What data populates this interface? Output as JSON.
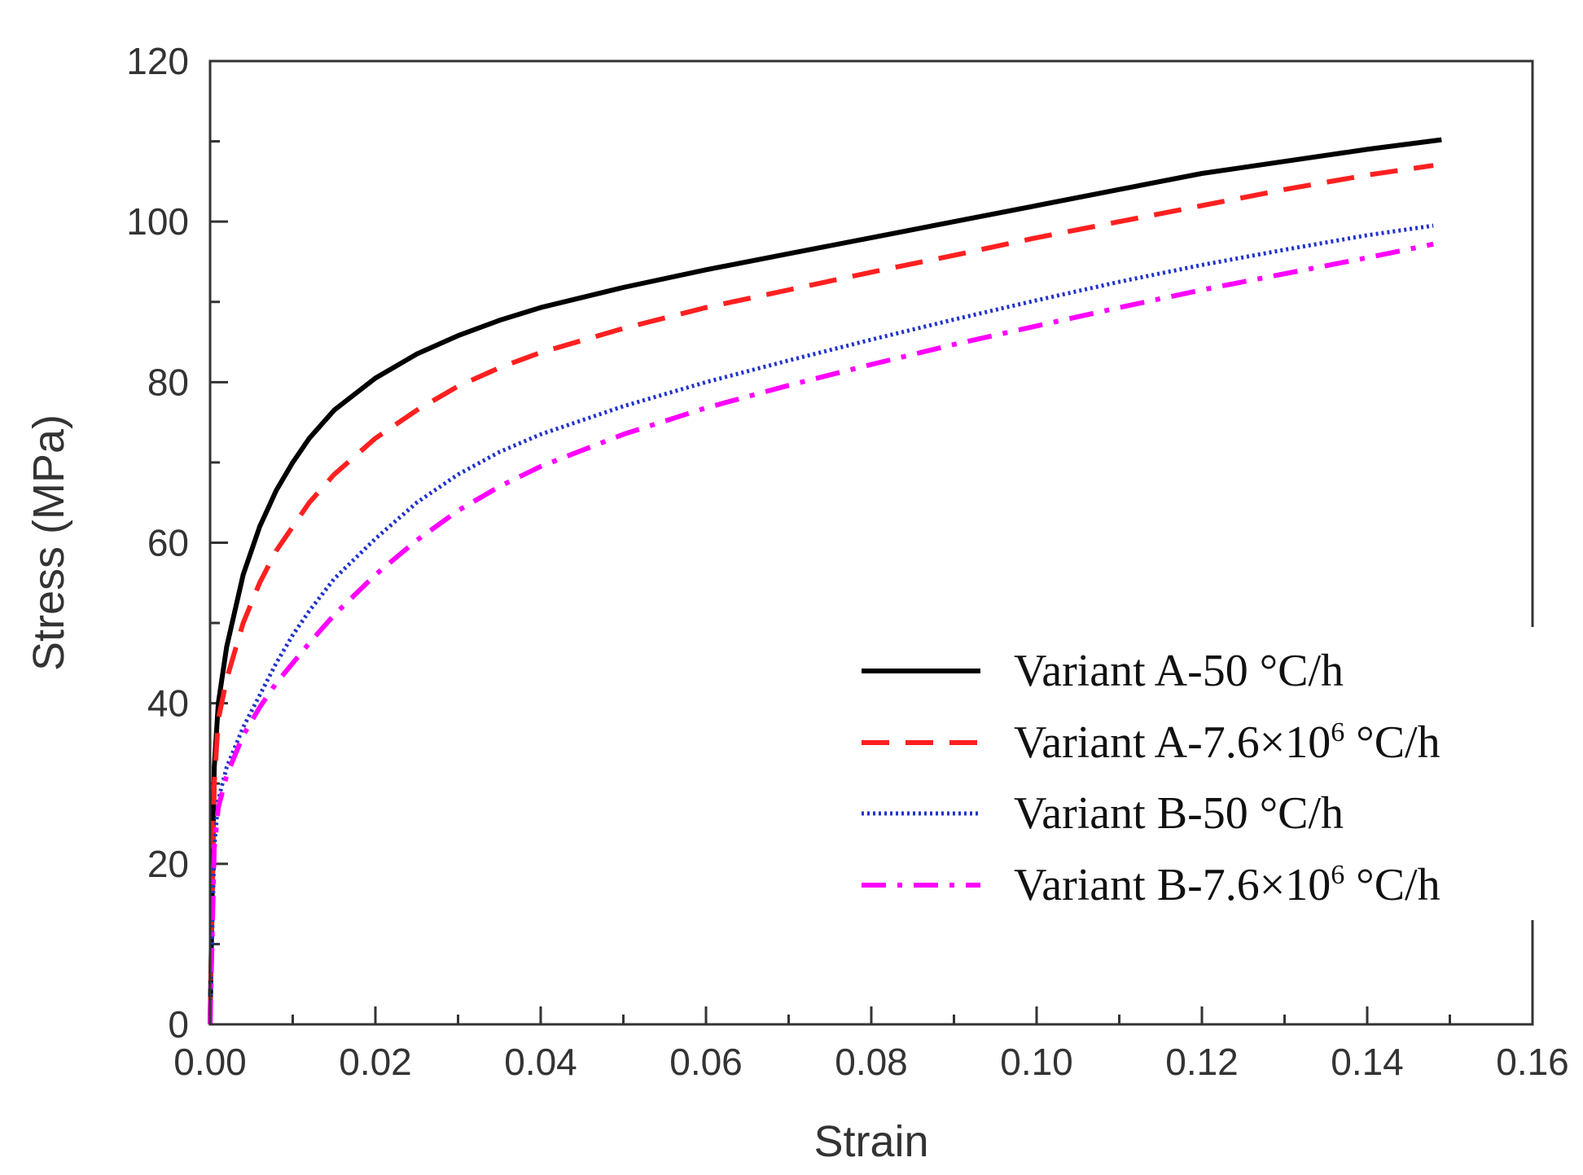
{
  "chart_data": {
    "type": "line",
    "title": "",
    "xlabel": "Strain",
    "ylabel": "Stress (MPa)",
    "xlim": [
      0,
      0.16
    ],
    "ylim": [
      0,
      120
    ],
    "xticks": [
      "0.00",
      "0.02",
      "0.04",
      "0.06",
      "0.08",
      "0.10",
      "0.12",
      "0.14",
      "0.16"
    ],
    "yticks": [
      "0",
      "20",
      "40",
      "60",
      "80",
      "100",
      "120"
    ],
    "grid": false,
    "legend_position": "lower-right",
    "series": [
      {
        "name": "Variant A-50 °C/h",
        "legend_main": "Variant A-50 °C/h",
        "legend_sup": "",
        "legend_tail": "",
        "color": "#000000",
        "style": "solid",
        "points": [
          [
            0,
            0
          ],
          [
            0.0005,
            32
          ],
          [
            0.001,
            40
          ],
          [
            0.002,
            47
          ],
          [
            0.004,
            56
          ],
          [
            0.006,
            62
          ],
          [
            0.008,
            66.5
          ],
          [
            0.01,
            70
          ],
          [
            0.012,
            73
          ],
          [
            0.015,
            76.5
          ],
          [
            0.02,
            80.5
          ],
          [
            0.025,
            83.5
          ],
          [
            0.03,
            85.8
          ],
          [
            0.035,
            87.7
          ],
          [
            0.04,
            89.3
          ],
          [
            0.05,
            91.8
          ],
          [
            0.06,
            94
          ],
          [
            0.07,
            96
          ],
          [
            0.08,
            98
          ],
          [
            0.09,
            100
          ],
          [
            0.1,
            102
          ],
          [
            0.11,
            104
          ],
          [
            0.12,
            106
          ],
          [
            0.13,
            107.5
          ],
          [
            0.14,
            109
          ],
          [
            0.149,
            110.2
          ]
        ]
      },
      {
        "name": "Variant A-7.6×10^6 °C/h",
        "legend_main": "Variant A-7.6×10",
        "legend_sup": "6",
        "legend_tail": " °C/h",
        "color": "#ff2020",
        "style": "dashed",
        "points": [
          [
            0,
            0
          ],
          [
            0.0005,
            30
          ],
          [
            0.001,
            38
          ],
          [
            0.002,
            43
          ],
          [
            0.004,
            50
          ],
          [
            0.006,
            55
          ],
          [
            0.008,
            59
          ],
          [
            0.01,
            62
          ],
          [
            0.012,
            65
          ],
          [
            0.015,
            68.5
          ],
          [
            0.02,
            73
          ],
          [
            0.025,
            76.5
          ],
          [
            0.03,
            79.5
          ],
          [
            0.035,
            81.8
          ],
          [
            0.04,
            83.7
          ],
          [
            0.05,
            86.7
          ],
          [
            0.06,
            89.3
          ],
          [
            0.07,
            91.5
          ],
          [
            0.08,
            93.7
          ],
          [
            0.09,
            95.8
          ],
          [
            0.1,
            98
          ],
          [
            0.11,
            100
          ],
          [
            0.12,
            102
          ],
          [
            0.13,
            104
          ],
          [
            0.14,
            105.8
          ],
          [
            0.148,
            107
          ]
        ]
      },
      {
        "name": "Variant B-50 °C/h",
        "legend_main": "Variant B-50 °C/h",
        "legend_sup": "",
        "legend_tail": "",
        "color": "#2233cc",
        "style": "dotted",
        "points": [
          [
            0,
            0
          ],
          [
            0.0005,
            22
          ],
          [
            0.001,
            28
          ],
          [
            0.002,
            32
          ],
          [
            0.004,
            37
          ],
          [
            0.006,
            41
          ],
          [
            0.008,
            45
          ],
          [
            0.01,
            48.5
          ],
          [
            0.012,
            51.5
          ],
          [
            0.015,
            55.5
          ],
          [
            0.02,
            60.5
          ],
          [
            0.025,
            65
          ],
          [
            0.03,
            68.5
          ],
          [
            0.035,
            71.3
          ],
          [
            0.04,
            73.5
          ],
          [
            0.05,
            77
          ],
          [
            0.06,
            80
          ],
          [
            0.07,
            82.7
          ],
          [
            0.08,
            85.3
          ],
          [
            0.09,
            87.8
          ],
          [
            0.1,
            90.2
          ],
          [
            0.11,
            92.5
          ],
          [
            0.12,
            94.6
          ],
          [
            0.13,
            96.5
          ],
          [
            0.14,
            98.3
          ],
          [
            0.148,
            99.5
          ]
        ]
      },
      {
        "name": "Variant B-7.6×10^6 °C/h",
        "legend_main": "Variant B-7.6×10",
        "legend_sup": "6",
        "legend_tail": " °C/h",
        "color": "#ff00ff",
        "style": "dash-dot",
        "points": [
          [
            0,
            0
          ],
          [
            0.0005,
            22
          ],
          [
            0.001,
            27
          ],
          [
            0.002,
            31
          ],
          [
            0.004,
            36
          ],
          [
            0.006,
            39.5
          ],
          [
            0.008,
            42.5
          ],
          [
            0.01,
            45
          ],
          [
            0.012,
            47.5
          ],
          [
            0.015,
            51
          ],
          [
            0.02,
            56
          ],
          [
            0.025,
            60.3
          ],
          [
            0.03,
            64
          ],
          [
            0.035,
            67
          ],
          [
            0.04,
            69.5
          ],
          [
            0.05,
            73.5
          ],
          [
            0.06,
            76.8
          ],
          [
            0.07,
            79.6
          ],
          [
            0.08,
            82.2
          ],
          [
            0.09,
            84.7
          ],
          [
            0.1,
            87
          ],
          [
            0.11,
            89.3
          ],
          [
            0.12,
            91.5
          ],
          [
            0.13,
            93.5
          ],
          [
            0.14,
            95.5
          ],
          [
            0.148,
            97.2
          ]
        ]
      }
    ]
  }
}
